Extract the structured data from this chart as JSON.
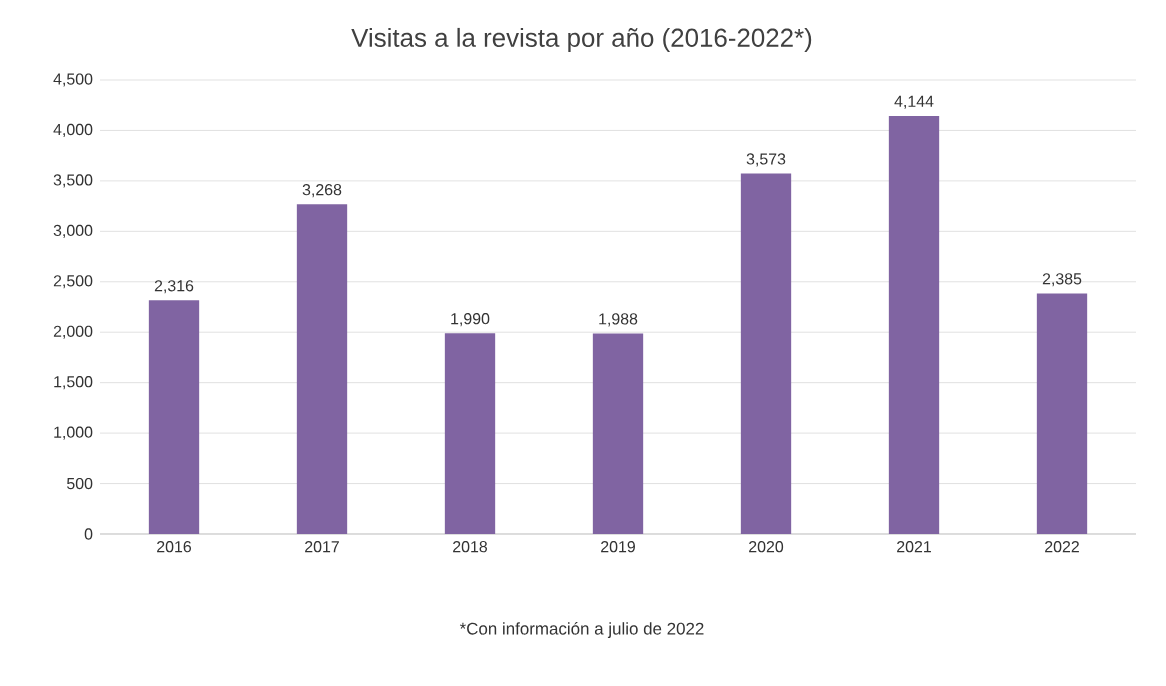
{
  "chart_data": {
    "type": "bar",
    "title": "Visitas a la revista por año (2016-2022*)",
    "categories": [
      "2016",
      "2017",
      "2018",
      "2019",
      "2020",
      "2021",
      "2022"
    ],
    "values": [
      2316,
      3268,
      1990,
      1988,
      3573,
      4144,
      2385
    ],
    "value_labels": [
      "2,316",
      "3,268",
      "1,990",
      "1,988",
      "3,573",
      "4,144",
      "2,385"
    ],
    "color": "#8064a2",
    "ylim": [
      0,
      4500
    ],
    "yticks": [
      0,
      500,
      {
        "value": 1000,
        "label": "1,000"
      },
      {
        "value": 1500,
        "label": "1,500"
      },
      {
        "value": 2000,
        "label": "2,000"
      },
      {
        "value": 2500,
        "label": "2,500"
      },
      {
        "value": 3000,
        "label": "3,000"
      },
      {
        "value": 3500,
        "label": "3,500"
      },
      {
        "value": 4000,
        "label": "4,000"
      },
      {
        "value": 4500,
        "label": "4,500"
      }
    ],
    "grid": "y",
    "annotations": [
      "*Con información a julio de 2022"
    ]
  }
}
